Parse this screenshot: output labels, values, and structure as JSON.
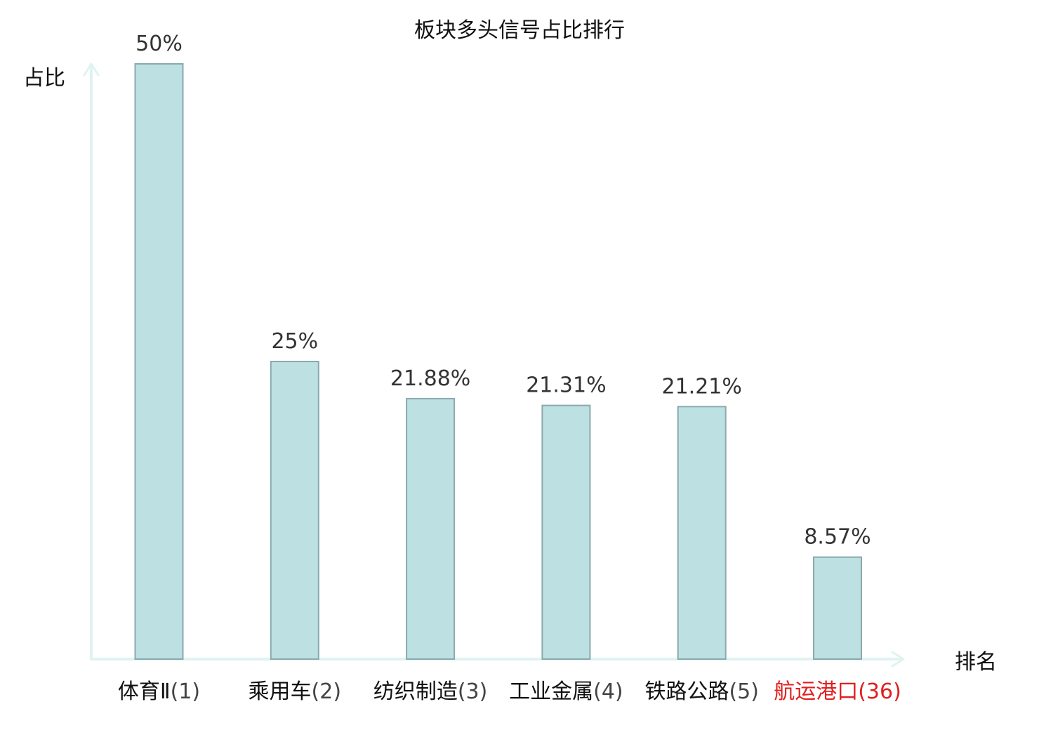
{
  "chart_data": {
    "type": "bar",
    "title": "板块多头信号占比排行",
    "ylabel": "占比",
    "xlabel": "排名",
    "categories": [
      {
        "name": "体育Ⅱ",
        "rank": "(1)",
        "highlight": false
      },
      {
        "name": "乘用车",
        "rank": "(2)",
        "highlight": false
      },
      {
        "name": "纺织制造",
        "rank": "(3)",
        "highlight": false
      },
      {
        "name": "工业金属",
        "rank": "(4)",
        "highlight": false
      },
      {
        "name": "铁路公路",
        "rank": "(5)",
        "highlight": false
      },
      {
        "name": "航运港口",
        "rank": "(36)",
        "highlight": true
      }
    ],
    "values": [
      50,
      25,
      21.88,
      21.31,
      21.21,
      8.57
    ],
    "value_labels": [
      "50%",
      "25%",
      "21.88%",
      "21.31%",
      "21.21%",
      "8.57%"
    ],
    "ylim": [
      0,
      50
    ],
    "grid": false,
    "colors": {
      "bar_fill": "#bde0e3",
      "bar_stroke": "#8aa9ad",
      "axis": "#dff3f1",
      "highlight_text": "#e01f1f",
      "normal_text": "#111111",
      "rank_text": "#444444"
    }
  }
}
